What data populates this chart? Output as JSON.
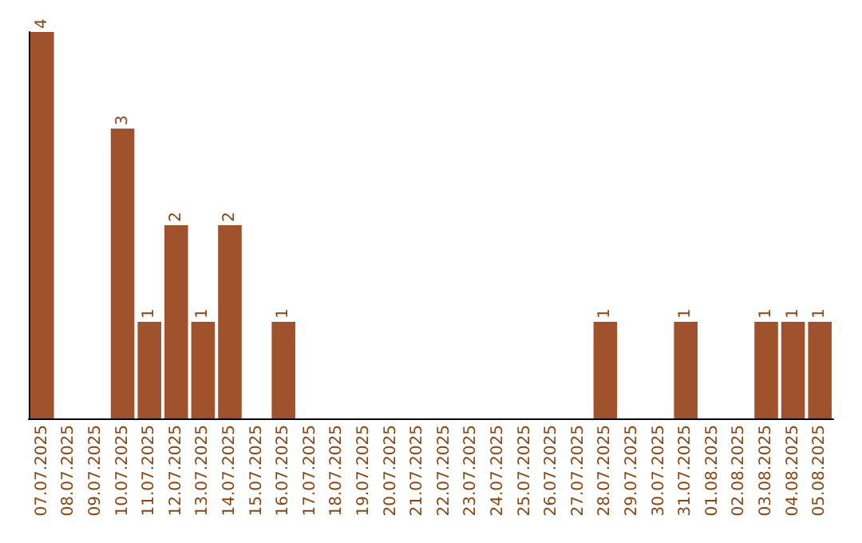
{
  "chart_data": {
    "type": "bar",
    "categories": [
      "07.07.2025",
      "08.07.2025",
      "09.07.2025",
      "10.07.2025",
      "11.07.2025",
      "12.07.2025",
      "13.07.2025",
      "14.07.2025",
      "15.07.2025",
      "16.07.2025",
      "17.07.2025",
      "18.07.2025",
      "19.07.2025",
      "20.07.2025",
      "21.07.2025",
      "22.07.2025",
      "23.07.2025",
      "24.07.2025",
      "25.07.2025",
      "26.07.2025",
      "27.07.2025",
      "28.07.2025",
      "29.07.2025",
      "30.07.2025",
      "31.07.2025",
      "01.08.2025",
      "02.08.2025",
      "03.08.2025",
      "04.08.2025",
      "05.08.2025"
    ],
    "values": [
      4,
      0,
      0,
      3,
      1,
      2,
      1,
      2,
      0,
      1,
      0,
      0,
      0,
      0,
      0,
      0,
      0,
      0,
      0,
      0,
      0,
      1,
      0,
      0,
      1,
      0,
      0,
      1,
      1,
      1
    ],
    "value_labels": [
      "4",
      null,
      null,
      "3",
      "1",
      "2",
      "1",
      "2",
      null,
      "1",
      null,
      null,
      null,
      null,
      null,
      null,
      null,
      null,
      null,
      null,
      null,
      "1",
      null,
      null,
      "1",
      null,
      null,
      "1",
      "1",
      "1"
    ],
    "color": "#a0522d",
    "ylim": [
      0,
      4
    ],
    "tick_labels": "x",
    "grid": false
  }
}
